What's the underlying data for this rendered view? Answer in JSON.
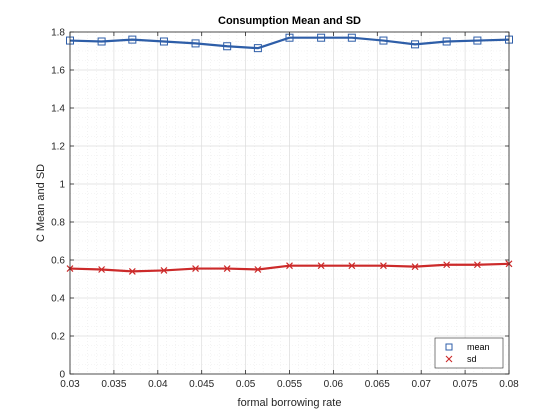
{
  "chart_data": {
    "type": "line",
    "title": "Consumption Mean and SD",
    "xlabel": "formal borrowing rate",
    "ylabel": "C Mean and SD",
    "xlim": [
      0.03,
      0.08
    ],
    "ylim": [
      0,
      1.8
    ],
    "xticks": [
      "0.03",
      "0.035",
      "0.04",
      "0.045",
      "0.05",
      "0.055",
      "0.06",
      "0.065",
      "0.07",
      "0.075",
      "0.08"
    ],
    "xtick_values": [
      0.03,
      0.035,
      0.04,
      0.045,
      0.05,
      0.055,
      0.06,
      0.065,
      0.07,
      0.075,
      0.08
    ],
    "yticks": [
      "0",
      "0.2",
      "0.4",
      "0.6",
      "0.8",
      "1",
      "1.2",
      "1.4",
      "1.6",
      "1.8"
    ],
    "ytick_values": [
      0,
      0.2,
      0.4,
      0.6,
      0.8,
      1.0,
      1.2,
      1.4,
      1.6,
      1.8
    ],
    "grid": true,
    "minor_grid": true,
    "legend_position": "bottom-right",
    "x": [
      0.03,
      0.0336,
      0.0371,
      0.0407,
      0.0443,
      0.0479,
      0.0514,
      0.055,
      0.0586,
      0.0621,
      0.0657,
      0.0693,
      0.0729,
      0.0764,
      0.08
    ],
    "series": [
      {
        "name": "mean",
        "marker": "square",
        "color": "#2E5EA8",
        "values": [
          1.755,
          1.75,
          1.76,
          1.75,
          1.74,
          1.725,
          1.715,
          1.77,
          1.77,
          1.77,
          1.755,
          1.735,
          1.75,
          1.755,
          1.76
        ]
      },
      {
        "name": "sd",
        "marker": "x",
        "color": "#CC2A2A",
        "values": [
          0.555,
          0.55,
          0.54,
          0.545,
          0.555,
          0.555,
          0.55,
          0.57,
          0.57,
          0.57,
          0.57,
          0.565,
          0.575,
          0.575,
          0.58
        ]
      }
    ]
  }
}
